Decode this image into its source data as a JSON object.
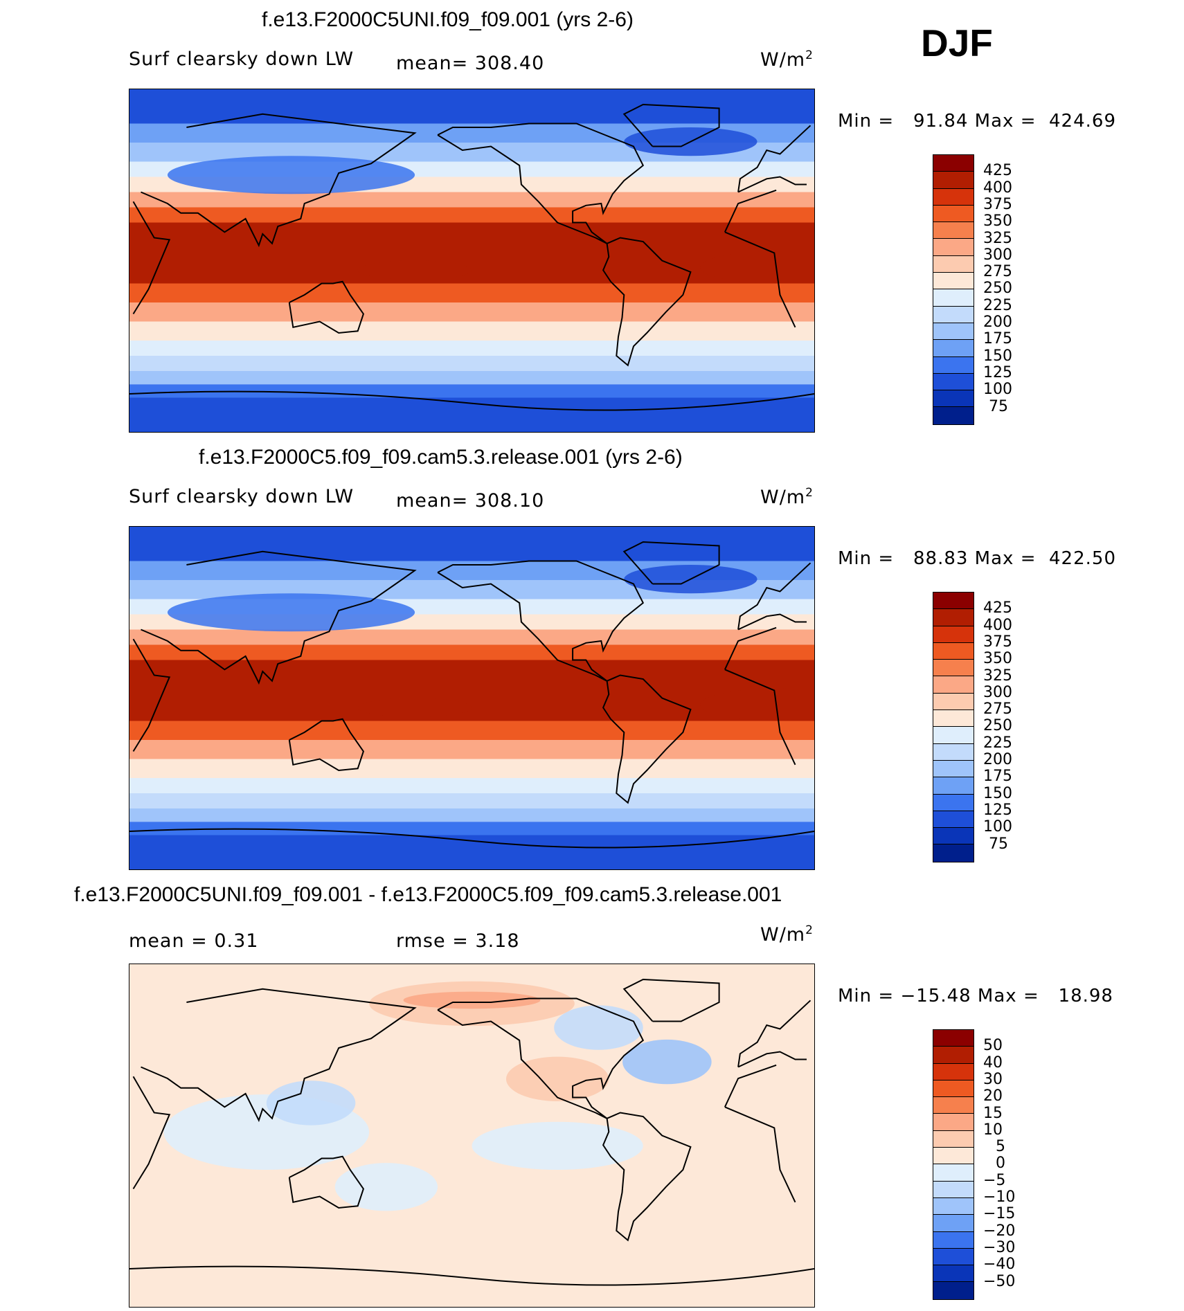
{
  "season": "DJF",
  "units": "W/m",
  "units_sup": "2",
  "panels": [
    {
      "title": "f.e13.F2000C5UNI.f09_f09.001 (yrs 2-6)",
      "left_label": "Surf clearsky down LW",
      "stat_label": "mean= 308.40",
      "stat2_label": "",
      "minmax": "Min =   91.84 Max =  424.69",
      "colorbar": {
        "colors": [
          "#8b0000",
          "#b11e02",
          "#d6330b",
          "#ee5a22",
          "#f6804d",
          "#fba886",
          "#fccbb0",
          "#fde8d8",
          "#dfeefc",
          "#c3dbfb",
          "#9fc4fa",
          "#6ea1f5",
          "#3b74ef",
          "#1e4fd8",
          "#0a35b8",
          "#001f8c"
        ],
        "ticks": [
          "425",
          "400",
          "375",
          "350",
          "325",
          "300",
          "275",
          "250",
          "225",
          "200",
          "175",
          "150",
          "125",
          "100",
          "75"
        ]
      },
      "field": "lw"
    },
    {
      "title": "f.e13.F2000C5.f09_f09.cam5.3.release.001 (yrs 2-6)",
      "left_label": "Surf clearsky down LW",
      "stat_label": "mean= 308.10",
      "stat2_label": "",
      "minmax": "Min =   88.83 Max =  422.50",
      "colorbar": {
        "colors": [
          "#8b0000",
          "#b11e02",
          "#d6330b",
          "#ee5a22",
          "#f6804d",
          "#fba886",
          "#fccbb0",
          "#fde8d8",
          "#dfeefc",
          "#c3dbfb",
          "#9fc4fa",
          "#6ea1f5",
          "#3b74ef",
          "#1e4fd8",
          "#0a35b8",
          "#001f8c"
        ],
        "ticks": [
          "425",
          "400",
          "375",
          "350",
          "325",
          "300",
          "275",
          "250",
          "225",
          "200",
          "175",
          "150",
          "125",
          "100",
          "75"
        ]
      },
      "field": "lw"
    },
    {
      "title": "f.e13.F2000C5UNI.f09_f09.001 - f.e13.F2000C5.f09_f09.cam5.3.release.001",
      "left_label": "mean =    0.31",
      "stat_label": "rmse =    3.18",
      "stat2_label": "",
      "minmax": "Min = −15.48 Max =   18.98",
      "colorbar": {
        "colors": [
          "#8b0000",
          "#b11e02",
          "#d6330b",
          "#ee5a22",
          "#f6804d",
          "#fba886",
          "#fccbb0",
          "#fde8d8",
          "#dfeefc",
          "#c3dbfb",
          "#9fc4fa",
          "#6ea1f5",
          "#3b74ef",
          "#1e4fd8",
          "#0a35b8",
          "#001f8c"
        ],
        "ticks": [
          "50",
          "40",
          "30",
          "20",
          "15",
          "10",
          "5",
          "0",
          "−5",
          "−10",
          "−15",
          "−20",
          "−30",
          "−40",
          "−50"
        ]
      },
      "field": "diff"
    }
  ]
}
